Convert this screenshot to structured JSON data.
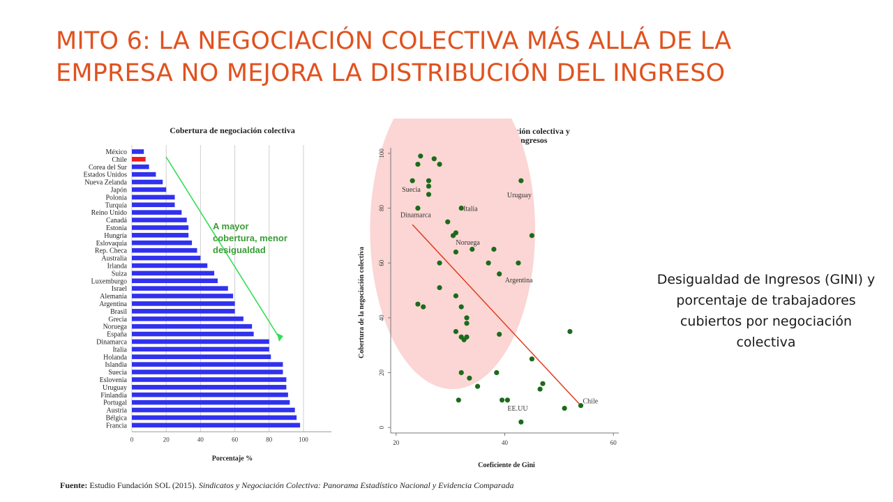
{
  "slide": {
    "title": "MITO 6: LA NEGOCIACIÓN COLECTIVA MÁS ALLÁ DE LA EMPRESA NO MEJORA LA DISTRIBUCIÓN DEL INGRESO",
    "caption": "Desigualdad de Ingresos (GINI) y porcentaje de trabajadores cubiertos por negociación colectiva",
    "source_prefix": "Fuente:",
    "source_plain": "Estudio Fundación SOL (2015).",
    "source_italic": "Sindicatos y Negociación Colectiva: Panorama Estadístico Nacional y Evidencia Comparada"
  },
  "chart_data": [
    {
      "type": "bar",
      "orientation": "horizontal",
      "title": "Cobertura de negociación colectiva",
      "xlabel": "Porcentaje %",
      "ylabel": "",
      "xlim": [
        0,
        100
      ],
      "xticks": [
        0,
        20,
        40,
        60,
        80,
        100
      ],
      "grid": true,
      "bar_color": "#3131f0",
      "highlight_color": "#ee1c1c",
      "highlight": [
        "Chile"
      ],
      "categories": [
        "México",
        "Chile",
        "Corea del Sur",
        "Estados Unidos",
        "Nueva Zelanda",
        "Japón",
        "Polonia",
        "Turquía",
        "Reino Unido",
        "Canadá",
        "Estonia",
        "Hungría",
        "Eslovaquia",
        "Rep. Checa",
        "Australia",
        "Irlanda",
        "Suiza",
        "Luxemburgo",
        "Israel",
        "Alemania",
        "Argentina",
        "Brasil",
        "Grecia",
        "Noruega",
        "España",
        "Dinamarca",
        "Italia",
        "Holanda",
        "Islandia",
        "Suecia",
        "Eslovenia",
        "Uruguay",
        "Finlandia",
        "Portugal",
        "Austria",
        "Bélgica",
        "Francia"
      ],
      "values": [
        7,
        8,
        10,
        14,
        18,
        20,
        25,
        25,
        29,
        32,
        33,
        33,
        35,
        38,
        40,
        44,
        48,
        50,
        56,
        59,
        60,
        60,
        65,
        70,
        71,
        80,
        80,
        81,
        88,
        88,
        90,
        90,
        91,
        92,
        95,
        96,
        98
      ],
      "annotation": {
        "lines": [
          "A mayor",
          "cobertura, menor",
          "desigualdad"
        ],
        "color": "#3a9c36",
        "arrow_color": "#33dd55"
      }
    },
    {
      "type": "scatter",
      "title_lines": [
        "Cobertura de negociación colectiva y",
        "desigualdad de ingresos"
      ],
      "xlabel": "Coeficiente de Gini",
      "ylabel": "Cobertura de la negociación colectiva",
      "xlim": [
        19,
        61
      ],
      "ylim": [
        -2,
        102
      ],
      "xticks": [
        20,
        40,
        60
      ],
      "yticks": [
        0,
        20,
        40,
        60,
        80,
        100
      ],
      "point_color": "#1b6b1b",
      "trend_color": "#e23a1e",
      "highlight_color": "#fbd6d4",
      "trend_line": [
        [
          23,
          74
        ],
        [
          54,
          8
        ]
      ],
      "points": [
        {
          "x": 24.5,
          "y": 99
        },
        {
          "x": 27,
          "y": 98
        },
        {
          "x": 24,
          "y": 96
        },
        {
          "x": 28,
          "y": 96
        },
        {
          "x": 23,
          "y": 90,
          "label": "Suecia"
        },
        {
          "x": 26,
          "y": 90
        },
        {
          "x": 26,
          "y": 88
        },
        {
          "x": 26,
          "y": 85
        },
        {
          "x": 43,
          "y": 90,
          "label": "Uruguay"
        },
        {
          "x": 24,
          "y": 80,
          "label": "Dinamarca"
        },
        {
          "x": 32,
          "y": 80,
          "label": "Italia"
        },
        {
          "x": 29.5,
          "y": 75
        },
        {
          "x": 30.5,
          "y": 70
        },
        {
          "x": 31,
          "y": 71,
          "label": "Noruega"
        },
        {
          "x": 45,
          "y": 70
        },
        {
          "x": 34,
          "y": 65
        },
        {
          "x": 38,
          "y": 65
        },
        {
          "x": 31,
          "y": 64
        },
        {
          "x": 28,
          "y": 60
        },
        {
          "x": 37,
          "y": 60
        },
        {
          "x": 42.5,
          "y": 60
        },
        {
          "x": 39,
          "y": 56,
          "label": "Argentina"
        },
        {
          "x": 28,
          "y": 51
        },
        {
          "x": 24,
          "y": 45
        },
        {
          "x": 25,
          "y": 44
        },
        {
          "x": 31,
          "y": 48
        },
        {
          "x": 32,
          "y": 44
        },
        {
          "x": 33,
          "y": 40
        },
        {
          "x": 33,
          "y": 38
        },
        {
          "x": 31,
          "y": 35
        },
        {
          "x": 52,
          "y": 35
        },
        {
          "x": 39,
          "y": 34
        },
        {
          "x": 32,
          "y": 33
        },
        {
          "x": 33,
          "y": 33
        },
        {
          "x": 32.5,
          "y": 32
        },
        {
          "x": 45,
          "y": 25
        },
        {
          "x": 32,
          "y": 20
        },
        {
          "x": 38.5,
          "y": 20
        },
        {
          "x": 33.5,
          "y": 18
        },
        {
          "x": 47,
          "y": 16
        },
        {
          "x": 35,
          "y": 15
        },
        {
          "x": 46.5,
          "y": 14
        },
        {
          "x": 31.5,
          "y": 10
        },
        {
          "x": 39.5,
          "y": 10
        },
        {
          "x": 40.5,
          "y": 10,
          "label": "EE.UU"
        },
        {
          "x": 51,
          "y": 7
        },
        {
          "x": 54,
          "y": 8,
          "label": "Chile"
        },
        {
          "x": 43,
          "y": 2
        }
      ]
    }
  ]
}
